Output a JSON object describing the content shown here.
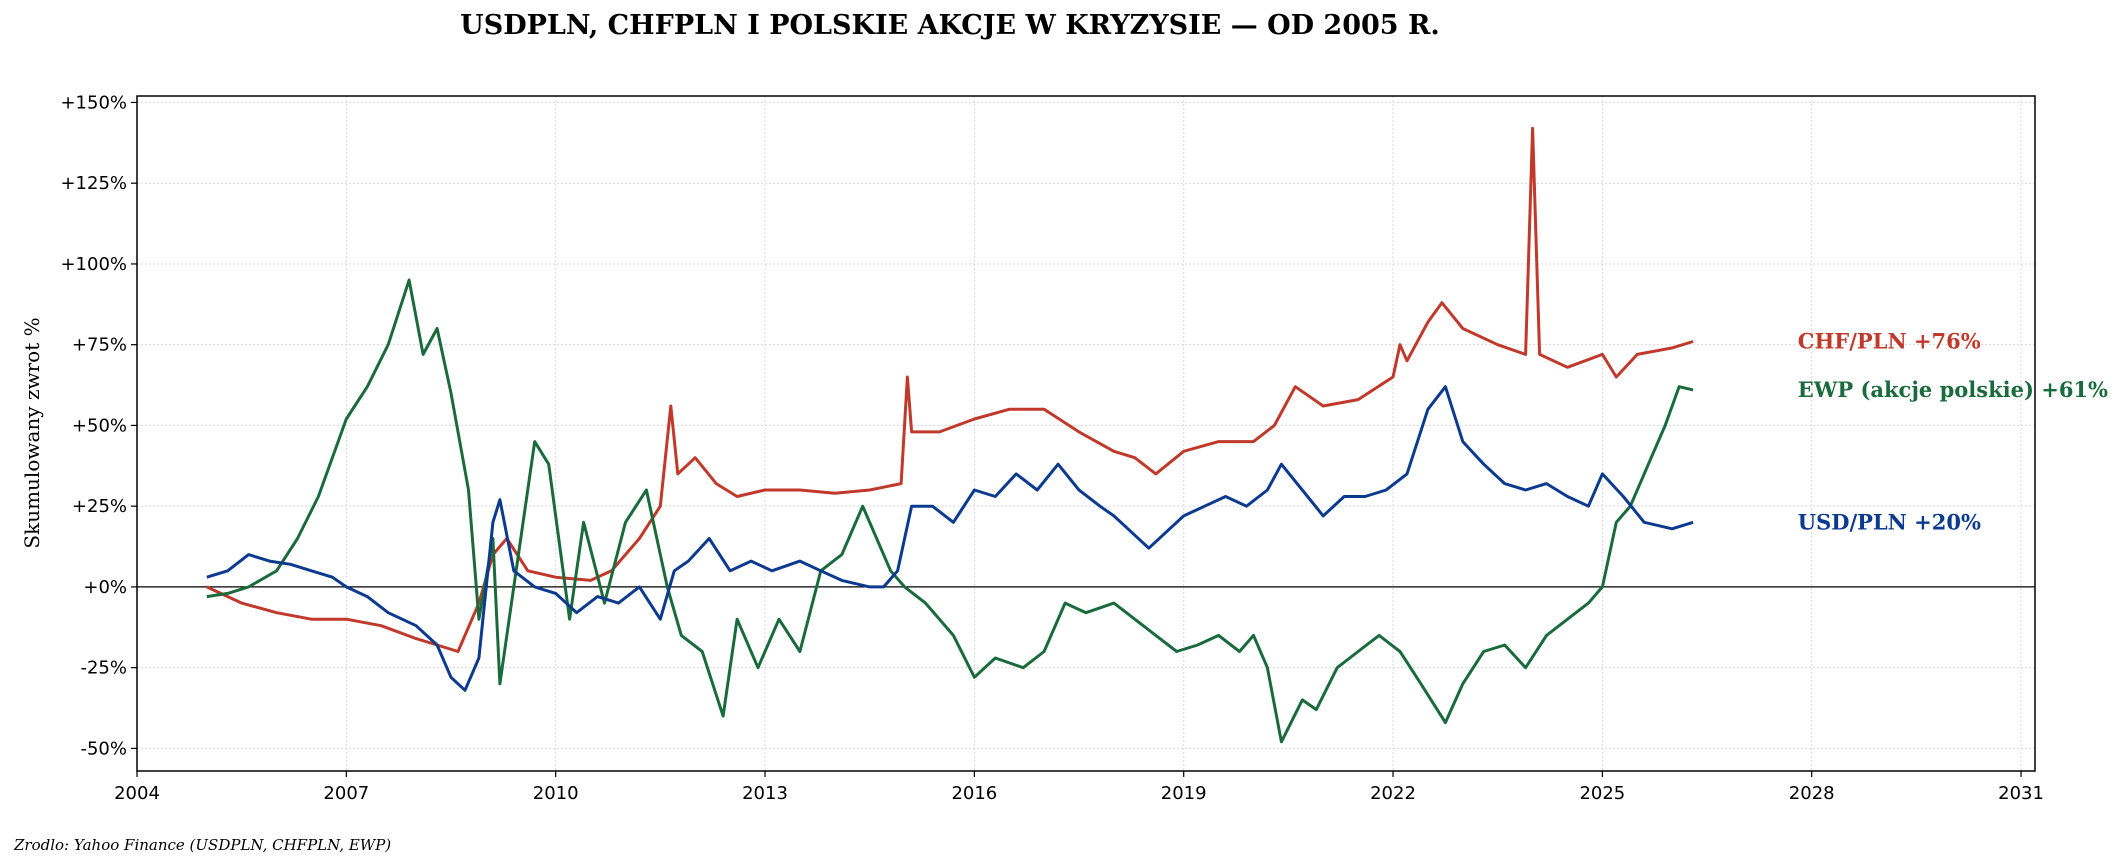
{
  "chart_data": {
    "type": "line",
    "title": "USDPLN, CHFPLN I POLSKIE AKCJE W KRYZYSIE — OD 2005 R.",
    "xlabel": "",
    "ylabel": "Skumulowany zwrot %",
    "xlim": [
      2004.0,
      2031.2
    ],
    "ylim": [
      -57,
      152
    ],
    "x_ticks": [
      2004,
      2007,
      2010,
      2013,
      2016,
      2019,
      2022,
      2025,
      2028,
      2031
    ],
    "x_tick_labels": [
      "2004",
      "2007",
      "2010",
      "2013",
      "2016",
      "2019",
      "2022",
      "2025",
      "2028",
      "2031"
    ],
    "y_ticks": [
      -50,
      -25,
      0,
      25,
      50,
      75,
      100,
      125,
      150
    ],
    "y_tick_labels": [
      "-50%",
      "-25%",
      "+0%",
      "+25%",
      "+50%",
      "+75%",
      "+100%",
      "+125%",
      "+150%"
    ],
    "grid": true,
    "zero_line": true,
    "source_note": "Zrodlo: Yahoo Finance (USDPLN, CHFPLN, EWP)",
    "series": [
      {
        "name": "CHF/PLN",
        "end_label": "CHF/PLN  +76%",
        "color": "#c0392b",
        "x": [
          2005.0,
          2005.5,
          2006.0,
          2006.5,
          2007.0,
          2007.5,
          2008.0,
          2008.3,
          2008.6,
          2008.9,
          2009.1,
          2009.3,
          2009.6,
          2010.0,
          2010.5,
          2010.8,
          2011.2,
          2011.5,
          2011.65,
          2011.75,
          2012.0,
          2012.3,
          2012.6,
          2013.0,
          2013.5,
          2014.0,
          2014.5,
          2014.95,
          2015.04,
          2015.1,
          2015.5,
          2016.0,
          2016.5,
          2017.0,
          2017.5,
          2018.0,
          2018.3,
          2018.6,
          2019.0,
          2019.5,
          2020.0,
          2020.3,
          2020.6,
          2021.0,
          2021.5,
          2022.0,
          2022.1,
          2022.2,
          2022.5,
          2022.7,
          2023.0,
          2023.5,
          2023.9,
          2024.0,
          2024.1,
          2024.5,
          2025.0,
          2025.2,
          2025.5,
          2026.0,
          2026.3
        ],
        "y": [
          0,
          -5,
          -8,
          -10,
          -10,
          -12,
          -16,
          -18,
          -20,
          -5,
          10,
          15,
          5,
          3,
          2,
          5,
          15,
          25,
          56,
          35,
          40,
          32,
          28,
          30,
          30,
          29,
          30,
          32,
          65,
          48,
          48,
          52,
          55,
          55,
          48,
          42,
          40,
          35,
          42,
          45,
          45,
          50,
          62,
          56,
          58,
          65,
          75,
          70,
          82,
          88,
          80,
          75,
          72,
          142,
          72,
          68,
          72,
          65,
          72,
          74,
          76
        ]
      },
      {
        "name": "EWP (akcje polskie)",
        "end_label": "EWP (akcje polskie)  +61%",
        "color": "#1a6b3c",
        "x": [
          2005.0,
          2005.3,
          2005.6,
          2006.0,
          2006.3,
          2006.6,
          2007.0,
          2007.3,
          2007.6,
          2007.9,
          2008.1,
          2008.3,
          2008.5,
          2008.75,
          2008.9,
          2009.1,
          2009.2,
          2009.4,
          2009.7,
          2009.9,
          2010.2,
          2010.4,
          2010.7,
          2011.0,
          2011.3,
          2011.6,
          2011.8,
          2012.1,
          2012.4,
          2012.6,
          2012.9,
          2013.2,
          2013.5,
          2013.8,
          2014.1,
          2014.4,
          2014.8,
          2015.0,
          2015.3,
          2015.7,
          2016.0,
          2016.3,
          2016.7,
          2017.0,
          2017.3,
          2017.6,
          2018.0,
          2018.3,
          2018.6,
          2018.9,
          2019.2,
          2019.5,
          2019.8,
          2020.0,
          2020.2,
          2020.4,
          2020.7,
          2020.9,
          2021.2,
          2021.5,
          2021.8,
          2022.1,
          2022.4,
          2022.75,
          2023.0,
          2023.3,
          2023.6,
          2023.9,
          2024.2,
          2024.5,
          2024.8,
          2025.0,
          2025.2,
          2025.4,
          2025.7,
          2025.9,
          2026.1,
          2026.3
        ],
        "y": [
          -3,
          -2,
          0,
          5,
          15,
          28,
          52,
          62,
          75,
          95,
          72,
          80,
          60,
          30,
          -10,
          15,
          -30,
          0,
          45,
          38,
          -10,
          20,
          -5,
          20,
          30,
          0,
          -15,
          -20,
          -40,
          -10,
          -25,
          -10,
          -20,
          5,
          10,
          25,
          5,
          0,
          -5,
          -15,
          -28,
          -22,
          -25,
          -20,
          -5,
          -8,
          -5,
          -10,
          -15,
          -20,
          -18,
          -15,
          -20,
          -15,
          -25,
          -48,
          -35,
          -38,
          -25,
          -20,
          -15,
          -20,
          -30,
          -42,
          -30,
          -20,
          -18,
          -25,
          -15,
          -10,
          -5,
          0,
          20,
          25,
          40,
          50,
          62,
          61
        ]
      },
      {
        "name": "USD/PLN",
        "end_label": "USD/PLN  +20%",
        "color": "#0b3a8f",
        "x": [
          2005.0,
          2005.3,
          2005.6,
          2005.9,
          2006.2,
          2006.5,
          2006.8,
          2007.0,
          2007.3,
          2007.6,
          2008.0,
          2008.3,
          2008.5,
          2008.7,
          2008.9,
          2009.1,
          2009.2,
          2009.4,
          2009.7,
          2010.0,
          2010.3,
          2010.6,
          2010.9,
          2011.2,
          2011.5,
          2011.7,
          2011.9,
          2012.2,
          2012.5,
          2012.8,
          2013.1,
          2013.5,
          2013.8,
          2014.1,
          2014.5,
          2014.7,
          2014.9,
          2015.1,
          2015.4,
          2015.7,
          2016.0,
          2016.3,
          2016.6,
          2016.9,
          2017.2,
          2017.5,
          2017.8,
          2018.0,
          2018.2,
          2018.5,
          2018.8,
          2019.0,
          2019.3,
          2019.6,
          2019.9,
          2020.2,
          2020.4,
          2020.7,
          2021.0,
          2021.3,
          2021.6,
          2021.9,
          2022.2,
          2022.5,
          2022.75,
          2023.0,
          2023.3,
          2023.6,
          2023.9,
          2024.2,
          2024.5,
          2024.8,
          2025.0,
          2025.3,
          2025.6,
          2026.0,
          2026.3
        ],
        "y": [
          3,
          5,
          10,
          8,
          7,
          5,
          3,
          0,
          -3,
          -8,
          -12,
          -18,
          -28,
          -32,
          -22,
          20,
          27,
          5,
          0,
          -2,
          -8,
          -3,
          -5,
          0,
          -10,
          5,
          8,
          15,
          5,
          8,
          5,
          8,
          5,
          2,
          0,
          0,
          5,
          25,
          25,
          20,
          30,
          28,
          35,
          30,
          38,
          30,
          25,
          22,
          18,
          12,
          18,
          22,
          25,
          28,
          25,
          30,
          38,
          30,
          22,
          28,
          28,
          30,
          35,
          55,
          62,
          45,
          38,
          32,
          30,
          32,
          28,
          25,
          35,
          28,
          20,
          18,
          20
        ]
      }
    ]
  }
}
